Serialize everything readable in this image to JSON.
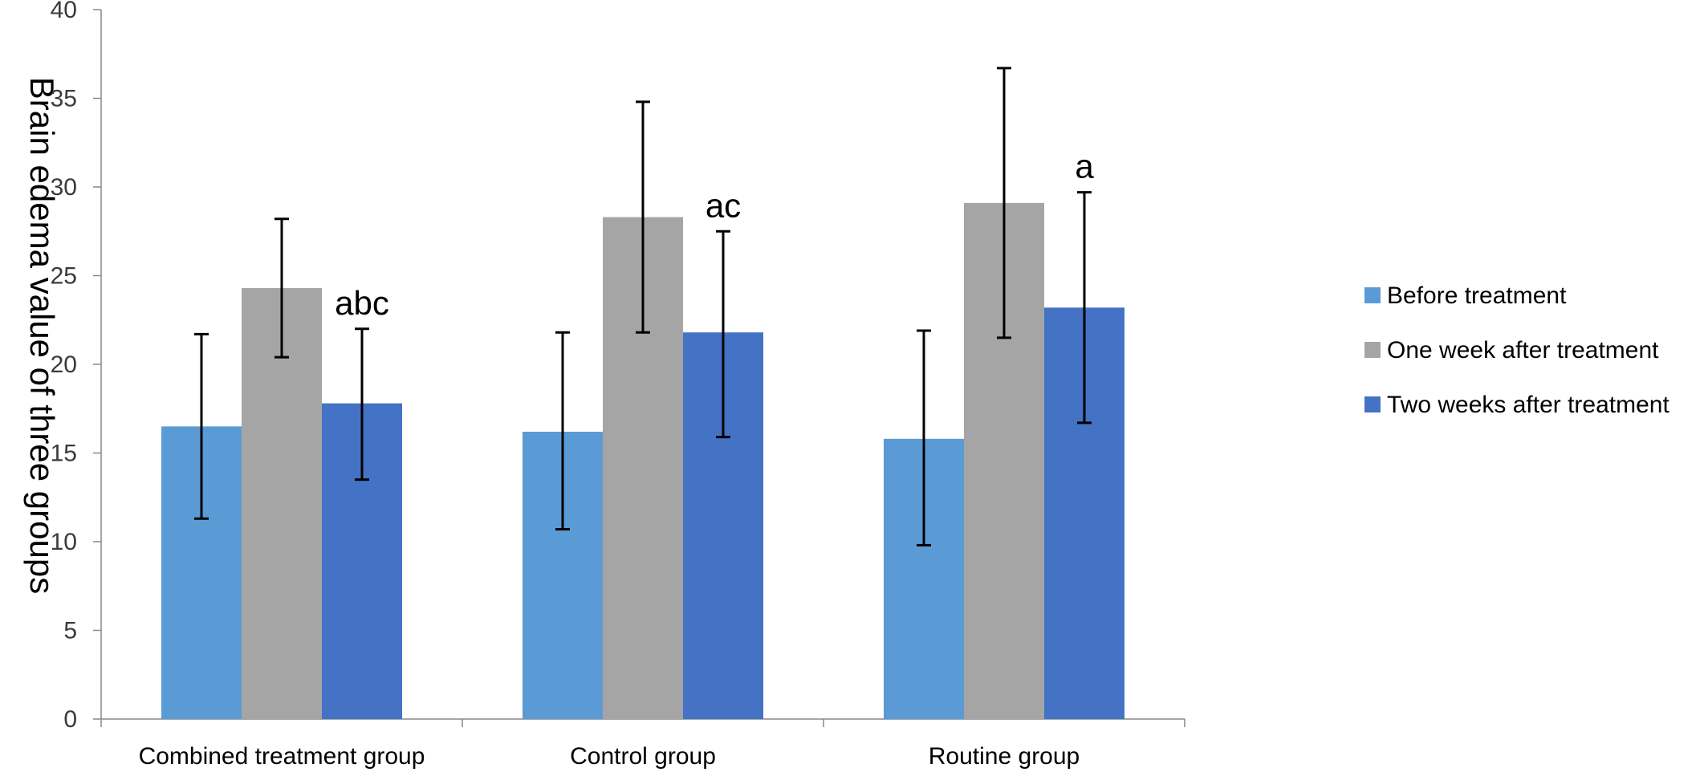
{
  "chart_data": {
    "type": "bar",
    "title": "",
    "xlabel": "",
    "ylabel": "Brain edema value of three groups",
    "ylim": [
      0,
      40
    ],
    "yticks": [
      0,
      5,
      10,
      15,
      20,
      25,
      30,
      35,
      40
    ],
    "grid": false,
    "legend_position": "right",
    "categories": [
      "Combined treatment group",
      "Control group",
      "Routine group"
    ],
    "series": [
      {
        "name": "Before treatment",
        "color": "#5b9bd5",
        "values": [
          16.5,
          16.2,
          15.8
        ],
        "error_low": [
          11.3,
          10.7,
          9.8
        ],
        "error_high": [
          21.7,
          21.8,
          21.9
        ]
      },
      {
        "name": "One week after treatment",
        "color": "#a5a5a5",
        "values": [
          24.3,
          28.3,
          29.1
        ],
        "error_low": [
          20.4,
          21.8,
          21.5
        ],
        "error_high": [
          28.2,
          34.8,
          36.7
        ]
      },
      {
        "name": "Two weeks after treatment",
        "color": "#4472c4",
        "values": [
          17.8,
          21.8,
          23.2
        ],
        "error_low": [
          13.5,
          15.9,
          16.7
        ],
        "error_high": [
          22.0,
          27.5,
          29.7
        ]
      }
    ],
    "annotations": [
      {
        "category_index": 0,
        "series_index": 2,
        "text": "abc"
      },
      {
        "category_index": 1,
        "series_index": 2,
        "text": "ac"
      },
      {
        "category_index": 2,
        "series_index": 2,
        "text": "a"
      }
    ]
  }
}
